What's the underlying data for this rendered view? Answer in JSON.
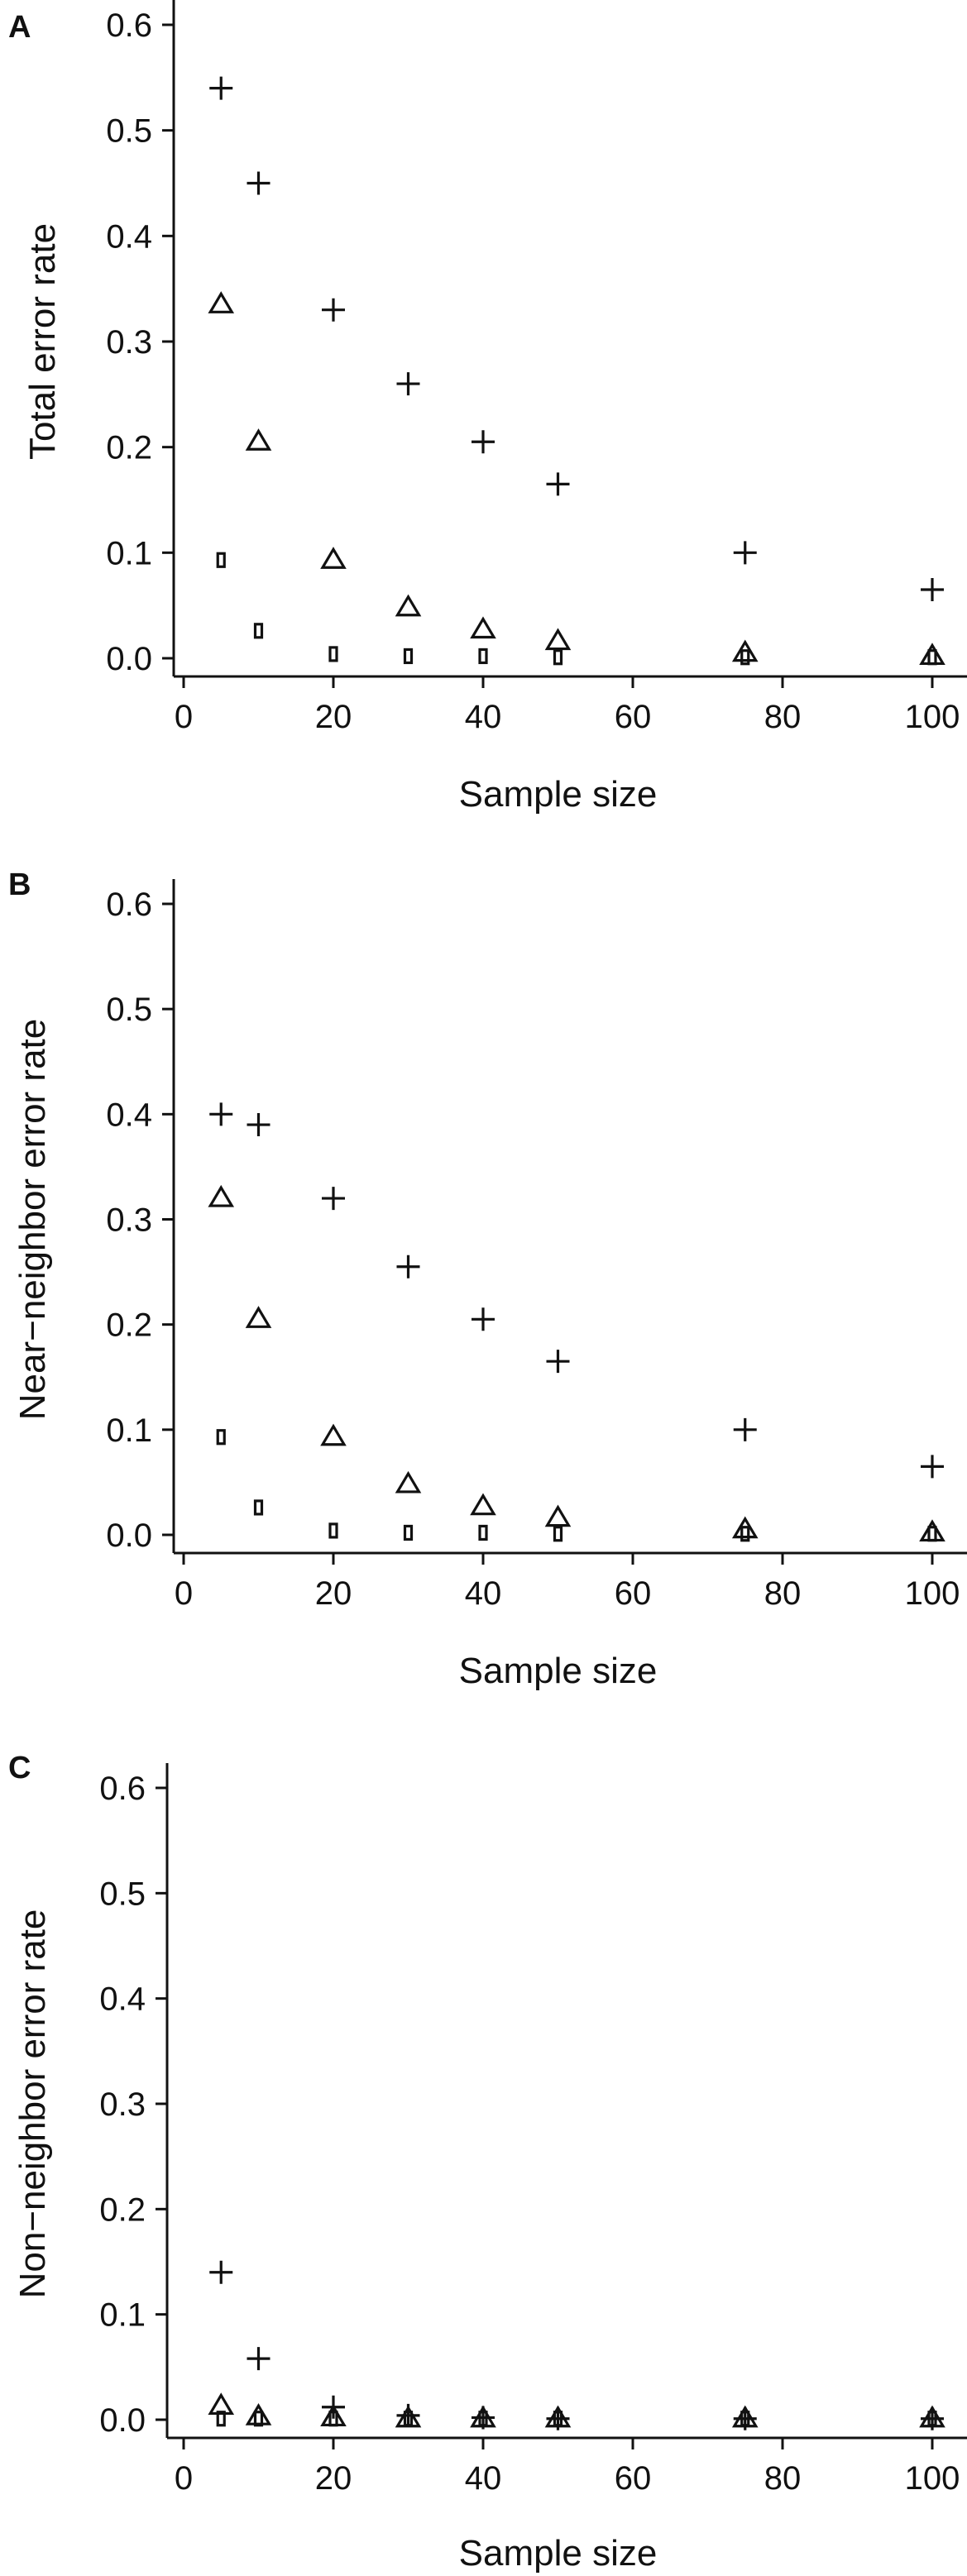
{
  "chart_data": [
    {
      "type": "scatter",
      "panel_label": "A",
      "xlabel": "Sample size",
      "ylabel": "Total error rate",
      "xlim": [
        0,
        100
      ],
      "ylim": [
        0,
        0.6
      ],
      "x_ticks": [
        0,
        20,
        40,
        60,
        80,
        100
      ],
      "y_ticks": [
        0.0,
        0.1,
        0.2,
        0.3,
        0.4,
        0.5,
        0.6
      ],
      "grid": false,
      "x": [
        5,
        10,
        20,
        30,
        40,
        50,
        75,
        100
      ],
      "series": [
        {
          "marker": "plus",
          "values": [
            0.54,
            0.45,
            0.33,
            0.26,
            0.205,
            0.165,
            0.1,
            0.065
          ]
        },
        {
          "marker": "triangle",
          "values": [
            0.335,
            0.205,
            0.093,
            0.048,
            0.027,
            0.016,
            0.005,
            0.002
          ]
        },
        {
          "marker": "square",
          "values": [
            0.093,
            0.026,
            0.004,
            0.002,
            0.002,
            0.001,
            0.001,
            0.001
          ]
        }
      ]
    },
    {
      "type": "scatter",
      "panel_label": "B",
      "xlabel": "Sample size",
      "ylabel": "Near−neighbor error rate",
      "xlim": [
        0,
        100
      ],
      "ylim": [
        0,
        0.6
      ],
      "x_ticks": [
        0,
        20,
        40,
        60,
        80,
        100
      ],
      "y_ticks": [
        0.0,
        0.1,
        0.2,
        0.3,
        0.4,
        0.5,
        0.6
      ],
      "grid": false,
      "x": [
        5,
        10,
        20,
        30,
        40,
        50,
        75,
        100
      ],
      "series": [
        {
          "marker": "plus",
          "values": [
            0.4,
            0.39,
            0.32,
            0.255,
            0.205,
            0.165,
            0.1,
            0.065
          ]
        },
        {
          "marker": "triangle",
          "values": [
            0.32,
            0.205,
            0.093,
            0.048,
            0.027,
            0.016,
            0.005,
            0.002
          ]
        },
        {
          "marker": "square",
          "values": [
            0.093,
            0.026,
            0.004,
            0.002,
            0.002,
            0.001,
            0.001,
            0.001
          ]
        }
      ]
    },
    {
      "type": "scatter",
      "panel_label": "C",
      "xlabel": "Sample size",
      "ylabel": "Non−neighbor error rate",
      "xlim": [
        0,
        100
      ],
      "ylim": [
        0,
        0.6
      ],
      "x_ticks": [
        0,
        20,
        40,
        60,
        80,
        100
      ],
      "y_ticks": [
        0.0,
        0.1,
        0.2,
        0.3,
        0.4,
        0.5,
        0.6
      ],
      "grid": false,
      "x": [
        5,
        10,
        20,
        30,
        40,
        50,
        75,
        100
      ],
      "series": [
        {
          "marker": "plus",
          "values": [
            0.14,
            0.058,
            0.012,
            0.004,
            0.002,
            0.001,
            0.001,
            0.001
          ]
        },
        {
          "marker": "triangle",
          "values": [
            0.013,
            0.003,
            0.002,
            0.001,
            0.001,
            0.001,
            0.001,
            0.001
          ]
        },
        {
          "marker": "square",
          "values": [
            0.001,
            0.001,
            0.001,
            0.001,
            0.001,
            0.001,
            0.001,
            0.001
          ]
        }
      ]
    }
  ]
}
